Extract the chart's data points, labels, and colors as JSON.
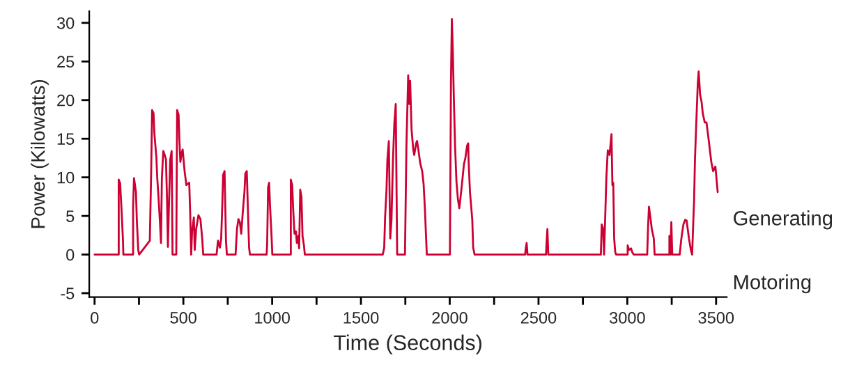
{
  "chart_data": {
    "type": "line",
    "xlabel": "Time (Seconds)",
    "ylabel": "Power (Kilowatts)",
    "annotations": [
      "Generating",
      "Motoring"
    ],
    "xlim": [
      -30,
      3560
    ],
    "ylim": [
      -5.5,
      31.5
    ],
    "xticks": [
      0,
      {
        "value": 250,
        "label": null
      },
      500,
      {
        "value": 750,
        "label": null
      },
      1000,
      {
        "value": 1250,
        "label": null
      },
      1500,
      {
        "value": 1750,
        "label": null
      },
      2000,
      {
        "value": 2250,
        "label": null
      },
      2500,
      {
        "value": 2750,
        "label": null
      },
      3000,
      {
        "value": 3250,
        "label": null
      },
      3500
    ],
    "yticks": [
      -5,
      0,
      5,
      10,
      15,
      20,
      25,
      30
    ],
    "grid": false,
    "legend": false,
    "marker": "none",
    "line_style": "solid",
    "series": [
      {
        "color": "#cc0033",
        "x": [
          0,
          136,
          136,
          144,
          152,
          160,
          162,
          217,
          217,
          222,
          233,
          238,
          246,
          251,
          311,
          319,
          324,
          332,
          337,
          348,
          353,
          361,
          368,
          374,
          379,
          387,
          395,
          402,
          408,
          413,
          418,
          426,
          434,
          439,
          460,
          465,
          473,
          478,
          483,
          491,
          496,
          507,
          517,
          533,
          538,
          544,
          549,
          559,
          564,
          572,
          585,
          596,
          606,
          612,
          687,
          695,
          706,
          713,
          719,
          724,
          732,
          740,
          745,
          794,
          802,
          810,
          818,
          826,
          834,
          844,
          849,
          857,
          870,
          875,
          969,
          972,
          977,
          983,
          988,
          996,
          1001,
          1105,
          1105,
          1113,
          1118,
          1126,
          1134,
          1139,
          1147,
          1152,
          1158,
          1165,
          1171,
          1179,
          1184,
          1623,
          1631,
          1636,
          1644,
          1649,
          1657,
          1665,
          1672,
          1680,
          1688,
          1696,
          1704,
          1748,
          1756,
          1766,
          1772,
          1777,
          1785,
          1795,
          1800,
          1811,
          1816,
          1824,
          1834,
          1845,
          1853,
          1860,
          1866,
          1871,
          2001,
          2007,
          2012,
          2017,
          2023,
          2030,
          2038,
          2046,
          2054,
          2067,
          2080,
          2088,
          2098,
          2104,
          2106,
          2114,
          2127,
          2132,
          2140,
          2425,
          2427,
          2433,
          2438,
          2542,
          2545,
          2550,
          2555,
          2851,
          2856,
          2864,
          2869,
          2874,
          2882,
          2890,
          2900,
          2911,
          2916,
          2921,
          2926,
          2932,
          2937,
          3002,
          3002,
          3010,
          3021,
          3028,
          3036,
          3112,
          3117,
          3122,
          3130,
          3138,
          3149,
          3154,
          3237,
          3237,
          3243,
          3248,
          3253,
          3295,
          3303,
          3308,
          3316,
          3326,
          3334,
          3347,
          3358,
          3365,
          3371,
          3376,
          3381,
          3389,
          3397,
          3402,
          3410,
          3418,
          3425,
          3436,
          3446,
          3459,
          3473,
          3483,
          3496,
          3509
        ],
        "values": [
          0,
          0,
          9.7,
          9.2,
          5.7,
          1.8,
          0,
          0,
          6.2,
          9.9,
          8.1,
          4.4,
          0.6,
          0,
          1.8,
          11.1,
          18.7,
          18.3,
          15.6,
          12.6,
          9.9,
          7.1,
          4.2,
          1.5,
          9.9,
          13.4,
          12.9,
          12.3,
          7.2,
          1.0,
          5.7,
          12.3,
          13.4,
          0,
          0,
          18.7,
          18.1,
          14.7,
          12.0,
          13.2,
          13.6,
          10.8,
          9.0,
          9.3,
          5.7,
          0,
          3.0,
          4.8,
          0.6,
          3.3,
          5.1,
          4.6,
          2.1,
          0,
          0,
          1.8,
          0.9,
          2.1,
          6.3,
          10.3,
          10.8,
          1.8,
          0,
          0,
          3.3,
          4.6,
          4.2,
          2.7,
          5.3,
          8.1,
          10.5,
          10.8,
          0.9,
          0,
          0,
          1.5,
          8.7,
          9.3,
          6.3,
          2.7,
          0,
          0,
          9.7,
          9.0,
          6.0,
          2.7,
          3.0,
          1.5,
          2.4,
          0.8,
          8.4,
          7.5,
          2.4,
          1.2,
          0,
          0,
          0.9,
          4.8,
          8.4,
          12.3,
          14.7,
          2.1,
          4.5,
          12.0,
          16.9,
          19.5,
          0,
          0,
          13.9,
          23.2,
          19.5,
          22.5,
          16.2,
          13.5,
          12.9,
          14.4,
          14.7,
          13.5,
          11.8,
          10.8,
          9.1,
          6.0,
          2.7,
          0,
          0,
          22.5,
          30.5,
          26.6,
          20.4,
          14.1,
          9.4,
          7.2,
          6.0,
          8.7,
          11.7,
          12.5,
          14.1,
          14.4,
          12.3,
          8.1,
          4.5,
          0.9,
          0,
          0,
          0.6,
          1.5,
          0,
          0,
          1.4,
          3.3,
          0,
          0,
          3.9,
          3.3,
          0,
          3.6,
          9.9,
          13.5,
          12.9,
          15.6,
          9.0,
          9.3,
          2.1,
          0.3,
          0,
          0,
          1.2,
          0.6,
          0.8,
          0.3,
          0,
          0,
          3.6,
          6.2,
          4.8,
          3.3,
          2.1,
          0,
          0,
          2.4,
          0,
          4.2,
          0,
          0,
          1.8,
          2.7,
          3.9,
          4.5,
          4.4,
          2.1,
          0.6,
          0,
          3.9,
          6.9,
          12.3,
          17.4,
          22.2,
          23.7,
          20.7,
          19.8,
          18.3,
          17.1,
          17.1,
          14.7,
          12.0,
          10.8,
          11.4,
          8.1
        ]
      }
    ]
  }
}
